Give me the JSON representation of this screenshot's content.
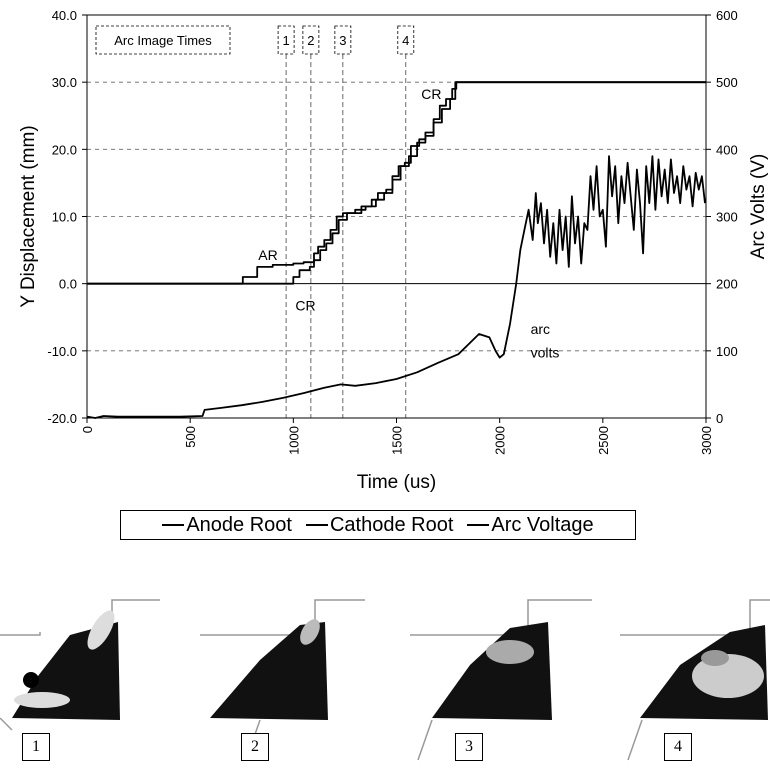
{
  "chart_data": {
    "type": "line",
    "xlabel": "Time (us)",
    "ylabel_left": "Y Displacement (mm)",
    "ylabel_right": "Arc Volts (V)",
    "xlim": [
      0,
      3000
    ],
    "ylim_left": [
      -20.0,
      40.0
    ],
    "ylim_right": [
      0,
      600
    ],
    "x_ticks": [
      "0",
      "500",
      "1000",
      "1500",
      "2000",
      "2500",
      "3000"
    ],
    "y_left_ticks": [
      "-20.0",
      "-10.0",
      "0.0",
      "10.0",
      "20.0",
      "30.0",
      "40.0"
    ],
    "y_right_ticks": [
      "0",
      "100",
      "200",
      "300",
      "400",
      "500",
      "600"
    ],
    "grid": true,
    "legend_position": "bottom",
    "marker_box_label": "Arc Image Times",
    "image_times": [
      {
        "label": "1",
        "time": 965
      },
      {
        "label": "2",
        "time": 1085
      },
      {
        "label": "3",
        "time": 1240
      },
      {
        "label": "4",
        "time": 1545
      }
    ],
    "annotations": [
      {
        "text": "CR",
        "x": 1620,
        "y": 27.5
      },
      {
        "text": "AR",
        "x": 830,
        "y": 3.5
      },
      {
        "text": "CR",
        "x": 1010,
        "y": -4.0
      },
      {
        "text": "arc",
        "x": 2150,
        "y": -7.5
      },
      {
        "text": "volts",
        "x": 2150,
        "y": -11.0
      }
    ],
    "series": [
      {
        "name": "Anode Root",
        "axis": "left",
        "x": [
          0,
          730,
          755,
          800,
          825,
          880,
          900,
          960,
          1000,
          1020,
          1050,
          1075,
          1100,
          1120,
          1150,
          1180,
          1210,
          1240,
          1290,
          1330,
          1380,
          1410,
          1450,
          1480,
          1510,
          1540,
          1570,
          1610,
          1640,
          1680,
          1710,
          1740,
          1770,
          1790,
          3000
        ],
        "y": [
          0.0,
          0.0,
          1.0,
          1.0,
          2.5,
          2.5,
          2.8,
          2.8,
          3.0,
          3.0,
          3.2,
          3.2,
          4.5,
          5.5,
          6.5,
          8.0,
          10.0,
          10.5,
          10.5,
          11.5,
          12.5,
          13.5,
          14.0,
          16.0,
          17.5,
          18.0,
          20.5,
          21.5,
          22.5,
          24.5,
          26.5,
          27.5,
          29.0,
          30.0,
          30.0
        ]
      },
      {
        "name": "Cathode Root",
        "axis": "left",
        "x": [
          0,
          980,
          1000,
          1030,
          1080,
          1100,
          1130,
          1160,
          1190,
          1220,
          1260,
          1300,
          1350,
          1400,
          1440,
          1480,
          1520,
          1560,
          1600,
          1640,
          1680,
          1720,
          1760,
          1785,
          3000
        ],
        "y": [
          0.0,
          0.0,
          1.0,
          2.0,
          2.5,
          3.5,
          5.0,
          6.0,
          7.5,
          9.5,
          10.5,
          11.0,
          11.5,
          12.5,
          13.5,
          15.5,
          17.5,
          19.0,
          21.0,
          22.0,
          24.0,
          26.0,
          27.5,
          30.0,
          30.0
        ]
      },
      {
        "name": "Arc Voltage",
        "axis": "right",
        "x": [
          0,
          40,
          80,
          150,
          300,
          450,
          560,
          570,
          650,
          750,
          850,
          950,
          1050,
          1150,
          1230,
          1300,
          1400,
          1500,
          1600,
          1700,
          1800,
          1850,
          1900,
          1950,
          1980,
          2000,
          2020,
          2050,
          2080,
          2100,
          2120,
          2140,
          2160,
          2175,
          2185,
          2200,
          2215,
          2230,
          2245,
          2260,
          2275,
          2290,
          2305,
          2320,
          2335,
          2350,
          2365,
          2380,
          2395,
          2410,
          2425,
          2440,
          2455,
          2470,
          2485,
          2500,
          2515,
          2530,
          2545,
          2560,
          2575,
          2590,
          2605,
          2620,
          2635,
          2650,
          2665,
          2680,
          2695,
          2710,
          2725,
          2740,
          2755,
          2770,
          2785,
          2800,
          2815,
          2830,
          2845,
          2860,
          2875,
          2890,
          2905,
          2920,
          2935,
          2950,
          2965,
          2980,
          2995
        ],
        "y": [
          2,
          0,
          3,
          2,
          2,
          2,
          3,
          12,
          15,
          19,
          24,
          30,
          37,
          45,
          50,
          48,
          52,
          58,
          68,
          82,
          95,
          110,
          125,
          120,
          100,
          90,
          95,
          140,
          200,
          250,
          280,
          310,
          265,
          335,
          290,
          320,
          260,
          310,
          240,
          290,
          230,
          310,
          250,
          300,
          225,
          330,
          260,
          300,
          230,
          290,
          280,
          360,
          310,
          375,
          300,
          310,
          255,
          390,
          330,
          375,
          290,
          360,
          320,
          380,
          330,
          280,
          370,
          320,
          245,
          375,
          320,
          390,
          310,
          385,
          330,
          370,
          320,
          385,
          335,
          360,
          320,
          375,
          340,
          360,
          315,
          365,
          340,
          360,
          320
        ]
      }
    ]
  },
  "legend": {
    "items": [
      {
        "label": "Anode Root"
      },
      {
        "label": "Cathode Root"
      },
      {
        "label": "Arc Voltage"
      }
    ]
  },
  "arc_images": {
    "labels": [
      "1",
      "2",
      "3",
      "4"
    ]
  }
}
